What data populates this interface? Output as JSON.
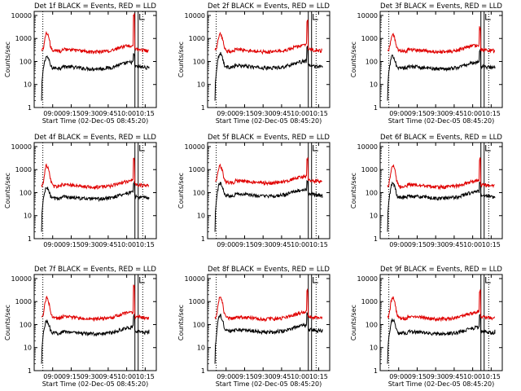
{
  "chart_data": [
    {
      "type": "line",
      "title": "Det 1f BLACK = Events, RED = LLD",
      "xlabel": "Start Time (02-Dec-05 08:45:20)",
      "ylabel": "Counts/sec",
      "x_tick_labels": [
        "09:00",
        "09:15",
        "09:30",
        "09:45",
        "10:00",
        "10:15"
      ],
      "y_tick_labels": [
        "1",
        "10",
        "100",
        "1000",
        "10000"
      ],
      "xlim": [
        "08:45",
        "10:24"
      ],
      "ylim": [
        1,
        15000
      ],
      "y_scale": "log",
      "dotted_vlines": [
        "08:52",
        "10:13"
      ],
      "series": [
        {
          "color": "#000000",
          "baseline": 55,
          "peak": 160,
          "spike": 200
        },
        {
          "color": "#e00000",
          "baseline": 300,
          "peak": 1600,
          "spike": 11000
        }
      ],
      "spike_time": "10:06"
    },
    {
      "type": "line",
      "title": "Det 2f BLACK = Events, RED = LLD",
      "xlabel": "Start Time (02-Dec-05 08:45:20)",
      "ylabel": "Counts/sec",
      "x_tick_labels": [
        "09:00",
        "09:15",
        "09:30",
        "09:45",
        "10:00",
        "10:15"
      ],
      "y_tick_labels": [
        "1",
        "10",
        "100",
        "1000",
        "10000"
      ],
      "xlim": [
        "08:45",
        "10:24"
      ],
      "ylim": [
        1,
        15000
      ],
      "y_scale": "log",
      "dotted_vlines": [
        "08:52",
        "10:13"
      ],
      "series": [
        {
          "color": "#000000",
          "baseline": 60,
          "peak": 230,
          "spike": 400
        },
        {
          "color": "#e00000",
          "baseline": 300,
          "peak": 1500,
          "spike": 6000
        }
      ],
      "spike_time": "10:06"
    },
    {
      "type": "line",
      "title": "Det 3f BLACK = Events, RED = LLD",
      "xlabel": "Start Time (02-Dec-05 08:45:20)",
      "ylabel": "Counts/sec",
      "x_tick_labels": [
        "09:00",
        "09:15",
        "09:30",
        "09:45",
        "10:00",
        "10:15"
      ],
      "y_tick_labels": [
        "1",
        "10",
        "100",
        "1000",
        "10000"
      ],
      "xlim": [
        "08:45",
        "10:24"
      ],
      "ylim": [
        1,
        15000
      ],
      "y_scale": "log",
      "dotted_vlines": [
        "08:52",
        "10:13"
      ],
      "series": [
        {
          "color": "#000000",
          "baseline": 55,
          "peak": 170,
          "spike": 300
        },
        {
          "color": "#e00000",
          "baseline": 300,
          "peak": 1500,
          "spike": 3000
        }
      ],
      "spike_time": "10:06"
    },
    {
      "type": "line",
      "title": "Det 4f BLACK = Events, RED = LLD",
      "xlabel": "",
      "ylabel": "Counts/sec",
      "x_tick_labels": [
        "09:00",
        "09:15",
        "09:30",
        "09:45",
        "10:00",
        "10:15"
      ],
      "y_tick_labels": [
        "1",
        "10",
        "100",
        "1000",
        "10000"
      ],
      "xlim": [
        "08:45",
        "10:24"
      ],
      "ylim": [
        1,
        15000
      ],
      "y_scale": "log",
      "dotted_vlines": [
        "08:52",
        "10:13"
      ],
      "series": [
        {
          "color": "#000000",
          "baseline": 60,
          "peak": 160,
          "spike": 300
        },
        {
          "color": "#e00000",
          "baseline": 200,
          "peak": 1500,
          "spike": 3000
        }
      ],
      "spike_time": "10:06"
    },
    {
      "type": "line",
      "title": "Det 5f BLACK = Events, RED = LLD",
      "xlabel": "",
      "ylabel": "Counts/sec",
      "x_tick_labels": [
        "09:00",
        "09:15",
        "09:30",
        "09:45",
        "10:00",
        "10:15"
      ],
      "y_tick_labels": [
        "1",
        "10",
        "100",
        "1000",
        "10000"
      ],
      "xlim": [
        "08:45",
        "10:24"
      ],
      "ylim": [
        1,
        15000
      ],
      "y_scale": "log",
      "dotted_vlines": [
        "08:52",
        "10:13"
      ],
      "series": [
        {
          "color": "#000000",
          "baseline": 80,
          "peak": 250,
          "spike": 300
        },
        {
          "color": "#e00000",
          "baseline": 300,
          "peak": 1500,
          "spike": 3000
        }
      ],
      "spike_time": "10:06"
    },
    {
      "type": "line",
      "title": "Det 6f BLACK = Events, RED = LLD",
      "xlabel": "",
      "ylabel": "Counts/sec",
      "x_tick_labels": [
        "09:00",
        "09:15",
        "09:30",
        "09:45",
        "10:00",
        "10:15"
      ],
      "y_tick_labels": [
        "1",
        "10",
        "100",
        "1000",
        "10000"
      ],
      "xlim": [
        "08:45",
        "10:24"
      ],
      "ylim": [
        1,
        15000
      ],
      "y_scale": "log",
      "dotted_vlines": [
        "08:52",
        "10:13"
      ],
      "series": [
        {
          "color": "#000000",
          "baseline": 65,
          "peak": 250,
          "spike": 300
        },
        {
          "color": "#e00000",
          "baseline": 200,
          "peak": 1500,
          "spike": 3000
        }
      ],
      "spike_time": "10:06"
    },
    {
      "type": "line",
      "title": "Det 7f BLACK = Events, RED = LLD",
      "xlabel": "Start Time (02-Dec-05 08:45:20)",
      "ylabel": "Counts/sec",
      "x_tick_labels": [
        "09:00",
        "09:15",
        "09:30",
        "09:45",
        "10:00",
        "10:15"
      ],
      "y_tick_labels": [
        "1",
        "10",
        "100",
        "1000",
        "10000"
      ],
      "xlim": [
        "08:45",
        "10:24"
      ],
      "ylim": [
        1,
        15000
      ],
      "y_scale": "log",
      "dotted_vlines": [
        "08:52",
        "10:13"
      ],
      "series": [
        {
          "color": "#000000",
          "baseline": 45,
          "peak": 140,
          "spike": 250
        },
        {
          "color": "#e00000",
          "baseline": 200,
          "peak": 1400,
          "spike": 5000
        }
      ],
      "spike_time": "10:06"
    },
    {
      "type": "line",
      "title": "Det 8f BLACK = Events, RED = LLD",
      "xlabel": "Start Time (02-Dec-05 08:45:20)",
      "ylabel": "Counts/sec",
      "x_tick_labels": [
        "09:00",
        "09:15",
        "09:30",
        "09:45",
        "10:00",
        "10:15"
      ],
      "y_tick_labels": [
        "1",
        "10",
        "100",
        "1000",
        "10000"
      ],
      "xlim": [
        "08:45",
        "10:24"
      ],
      "ylim": [
        1,
        15000
      ],
      "y_scale": "log",
      "dotted_vlines": [
        "08:52",
        "10:13"
      ],
      "series": [
        {
          "color": "#000000",
          "baseline": 55,
          "peak": 250,
          "spike": 300
        },
        {
          "color": "#e00000",
          "baseline": 200,
          "peak": 1500,
          "spike": 3000
        }
      ],
      "spike_time": "10:06"
    },
    {
      "type": "line",
      "title": "Det 9f BLACK = Events, RED = LLD",
      "xlabel": "Start Time (02-Dec-05 08:45:20)",
      "ylabel": "Counts/sec",
      "x_tick_labels": [
        "09:00",
        "09:15",
        "09:30",
        "09:45",
        "10:00",
        "10:15"
      ],
      "y_tick_labels": [
        "1",
        "10",
        "100",
        "1000",
        "10000"
      ],
      "xlim": [
        "08:45",
        "10:24"
      ],
      "ylim": [
        1,
        15000
      ],
      "y_scale": "log",
      "dotted_vlines": [
        "08:52",
        "10:13"
      ],
      "series": [
        {
          "color": "#000000",
          "baseline": 45,
          "peak": 160,
          "spike": 250
        },
        {
          "color": "#e00000",
          "baseline": 200,
          "peak": 1500,
          "spike": 3000
        }
      ],
      "spike_time": "10:06"
    }
  ]
}
